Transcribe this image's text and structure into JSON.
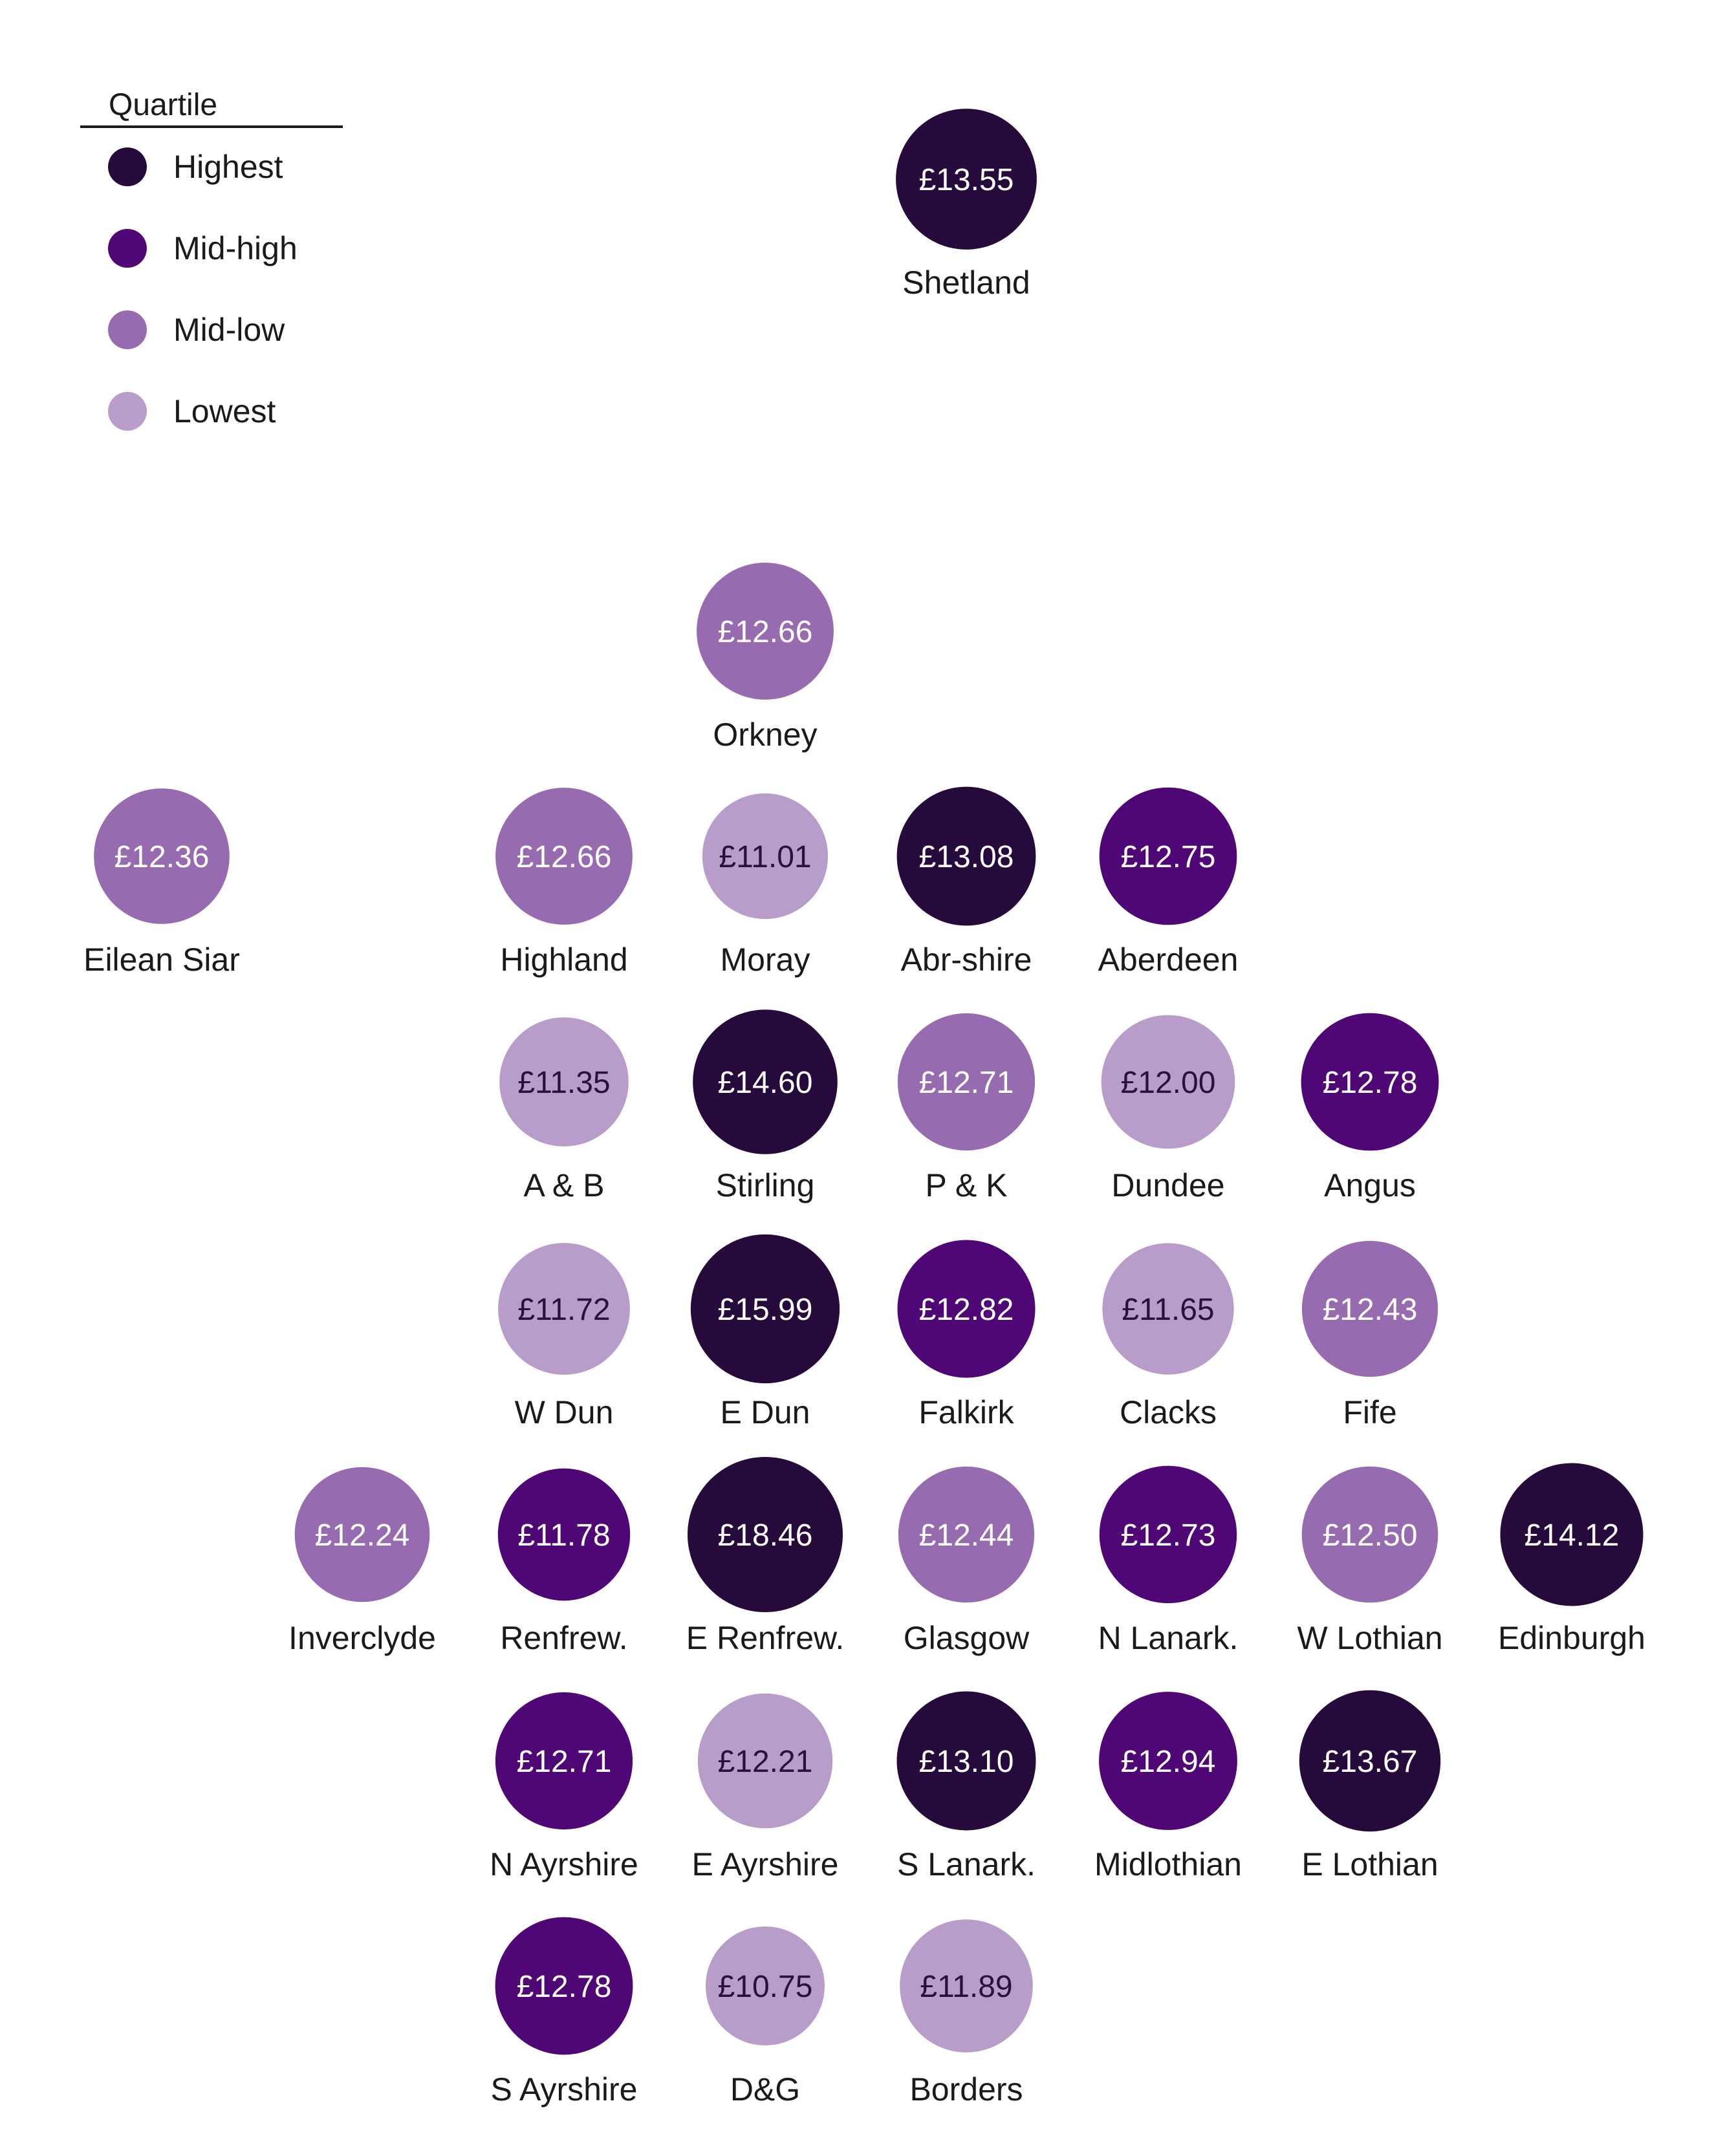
{
  "legend": {
    "title": "Quartile",
    "items": [
      {
        "key": "highest",
        "label": "Highest",
        "color": "#270a3c"
      },
      {
        "key": "midhigh",
        "label": "Mid-high",
        "color": "#4f0775"
      },
      {
        "key": "midlow",
        "label": "Mid-low",
        "color": "#976bb0"
      },
      {
        "key": "lowest",
        "label": "Lowest",
        "color": "#b89dca"
      }
    ]
  },
  "chart_data": {
    "type": "tile-grid-map",
    "value_unit": "£",
    "series": [
      {
        "name": "Shetland",
        "value": 13.55,
        "label": "£13.55",
        "quartile": "highest",
        "col": 4,
        "row": 0
      },
      {
        "name": "Orkney",
        "value": 12.66,
        "label": "£12.66",
        "quartile": "midlow",
        "col": 3,
        "row": 2
      },
      {
        "name": "Eilean Siar",
        "value": 12.36,
        "label": "£12.36",
        "quartile": "midlow",
        "col": 0,
        "row": 3
      },
      {
        "name": "Highland",
        "value": 12.66,
        "label": "£12.66",
        "quartile": "midlow",
        "col": 2,
        "row": 3
      },
      {
        "name": "Moray",
        "value": 11.01,
        "label": "£11.01",
        "quartile": "lowest",
        "col": 3,
        "row": 3
      },
      {
        "name": "Abr-shire",
        "value": 13.08,
        "label": "£13.08",
        "quartile": "highest",
        "col": 4,
        "row": 3
      },
      {
        "name": "Aberdeen",
        "value": 12.75,
        "label": "£12.75",
        "quartile": "midhigh",
        "col": 5,
        "row": 3
      },
      {
        "name": "A & B",
        "value": 11.35,
        "label": "£11.35",
        "quartile": "lowest",
        "col": 2,
        "row": 4
      },
      {
        "name": "Stirling",
        "value": 14.6,
        "label": "£14.60",
        "quartile": "highest",
        "col": 3,
        "row": 4
      },
      {
        "name": "P & K",
        "value": 12.71,
        "label": "£12.71",
        "quartile": "midlow",
        "col": 4,
        "row": 4
      },
      {
        "name": "Dundee",
        "value": 12.0,
        "label": "£12.00",
        "quartile": "lowest",
        "col": 5,
        "row": 4
      },
      {
        "name": "Angus",
        "value": 12.78,
        "label": "£12.78",
        "quartile": "midhigh",
        "col": 6,
        "row": 4
      },
      {
        "name": "W Dun",
        "value": 11.72,
        "label": "£11.72",
        "quartile": "lowest",
        "col": 2,
        "row": 5
      },
      {
        "name": "E Dun",
        "value": 15.99,
        "label": "£15.99",
        "quartile": "highest",
        "col": 3,
        "row": 5
      },
      {
        "name": "Falkirk",
        "value": 12.82,
        "label": "£12.82",
        "quartile": "midhigh",
        "col": 4,
        "row": 5
      },
      {
        "name": "Clacks",
        "value": 11.65,
        "label": "£11.65",
        "quartile": "lowest",
        "col": 5,
        "row": 5
      },
      {
        "name": "Fife",
        "value": 12.43,
        "label": "£12.43",
        "quartile": "midlow",
        "col": 6,
        "row": 5
      },
      {
        "name": "Inverclyde",
        "value": 12.24,
        "label": "£12.24",
        "quartile": "midlow",
        "col": 1,
        "row": 6
      },
      {
        "name": "Renfrew.",
        "value": 11.78,
        "label": "£11.78",
        "quartile": "midhigh",
        "col": 2,
        "row": 6
      },
      {
        "name": "E Renfrew.",
        "value": 18.46,
        "label": "£18.46",
        "quartile": "highest",
        "col": 3,
        "row": 6
      },
      {
        "name": "Glasgow",
        "value": 12.44,
        "label": "£12.44",
        "quartile": "midlow",
        "col": 4,
        "row": 6
      },
      {
        "name": "N Lanark.",
        "value": 12.73,
        "label": "£12.73",
        "quartile": "midhigh",
        "col": 5,
        "row": 6
      },
      {
        "name": "W Lothian",
        "value": 12.5,
        "label": "£12.50",
        "quartile": "midlow",
        "col": 6,
        "row": 6
      },
      {
        "name": "Edinburgh",
        "value": 14.12,
        "label": "£14.12",
        "quartile": "highest",
        "col": 7,
        "row": 6
      },
      {
        "name": "N Ayrshire",
        "value": 12.71,
        "label": "£12.71",
        "quartile": "midhigh",
        "col": 2,
        "row": 7
      },
      {
        "name": "E Ayrshire",
        "value": 12.21,
        "label": "£12.21",
        "quartile": "lowest",
        "col": 3,
        "row": 7
      },
      {
        "name": "S Lanark.",
        "value": 13.1,
        "label": "£13.10",
        "quartile": "highest",
        "col": 4,
        "row": 7
      },
      {
        "name": "Midlothian",
        "value": 12.94,
        "label": "£12.94",
        "quartile": "midhigh",
        "col": 5,
        "row": 7
      },
      {
        "name": "E Lothian",
        "value": 13.67,
        "label": "£13.67",
        "quartile": "highest",
        "col": 6,
        "row": 7
      },
      {
        "name": "S Ayrshire",
        "value": 12.78,
        "label": "£12.78",
        "quartile": "midhigh",
        "col": 2,
        "row": 8
      },
      {
        "name": "D&G",
        "value": 10.75,
        "label": "£10.75",
        "quartile": "lowest",
        "col": 3,
        "row": 8
      },
      {
        "name": "Borders",
        "value": 11.89,
        "label": "£11.89",
        "quartile": "lowest",
        "col": 4,
        "row": 8
      }
    ]
  }
}
